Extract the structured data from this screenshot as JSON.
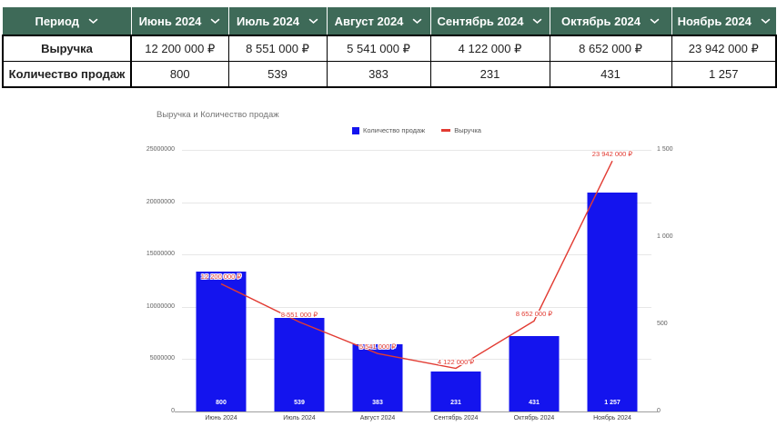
{
  "table": {
    "header": [
      {
        "label": "Период"
      },
      {
        "label": "Июнь 2024"
      },
      {
        "label": "Июль 2024"
      },
      {
        "label": "Август 2024"
      },
      {
        "label": "Сентябрь 2024"
      },
      {
        "label": "Октябрь 2024"
      },
      {
        "label": "Ноябрь 2024"
      }
    ],
    "rows": [
      {
        "label": "Выручка",
        "values": [
          "12 200 000 ₽",
          "8 551 000 ₽",
          "5 541 000 ₽",
          "4 122 000 ₽",
          "8 652 000 ₽",
          "23 942 000 ₽"
        ]
      },
      {
        "label": "Количество продаж",
        "values": [
          "800",
          "539",
          "383",
          "231",
          "431",
          "1 257"
        ]
      }
    ],
    "header_bg": "#3e6a58"
  },
  "chart_data": {
    "type": "combo",
    "title": "Выручка и Количество продаж",
    "categories": [
      "Июнь 2024",
      "Июль 2024",
      "Август 2024",
      "Сентябрь 2024",
      "Октябрь 2024",
      "Ноябрь 2024"
    ],
    "series": [
      {
        "name": "Количество продаж",
        "type": "bar",
        "axis": "right",
        "color": "#1414ee",
        "values": [
          800,
          539,
          383,
          231,
          431,
          1257
        ],
        "bar_labels": [
          "800",
          "539",
          "383",
          "231",
          "431",
          "1 257"
        ]
      },
      {
        "name": "Выручка",
        "type": "line",
        "axis": "left",
        "color": "#e23b32",
        "values": [
          12200000,
          8551000,
          5541000,
          4122000,
          8652000,
          23942000
        ],
        "point_labels": [
          "12 200 000 ₽",
          "8 551 000 ₽",
          "5 541 000 ₽",
          "4 122 000 ₽",
          "8 652 000 ₽",
          "23 942 000 ₽"
        ]
      }
    ],
    "left_axis": {
      "range": [
        0,
        25000000
      ],
      "ticks": [
        0,
        5000000,
        10000000,
        15000000,
        20000000,
        25000000
      ],
      "tick_labels": [
        "0",
        "5000000",
        "10000000",
        "15000000",
        "20000000",
        "25000000"
      ]
    },
    "right_axis": {
      "range": [
        0,
        1500
      ],
      "ticks": [
        0,
        500,
        1000,
        1500
      ],
      "tick_labels": [
        "0",
        "500",
        "1 000",
        "1 500"
      ]
    },
    "legend_position": "top-center",
    "grid": true
  }
}
